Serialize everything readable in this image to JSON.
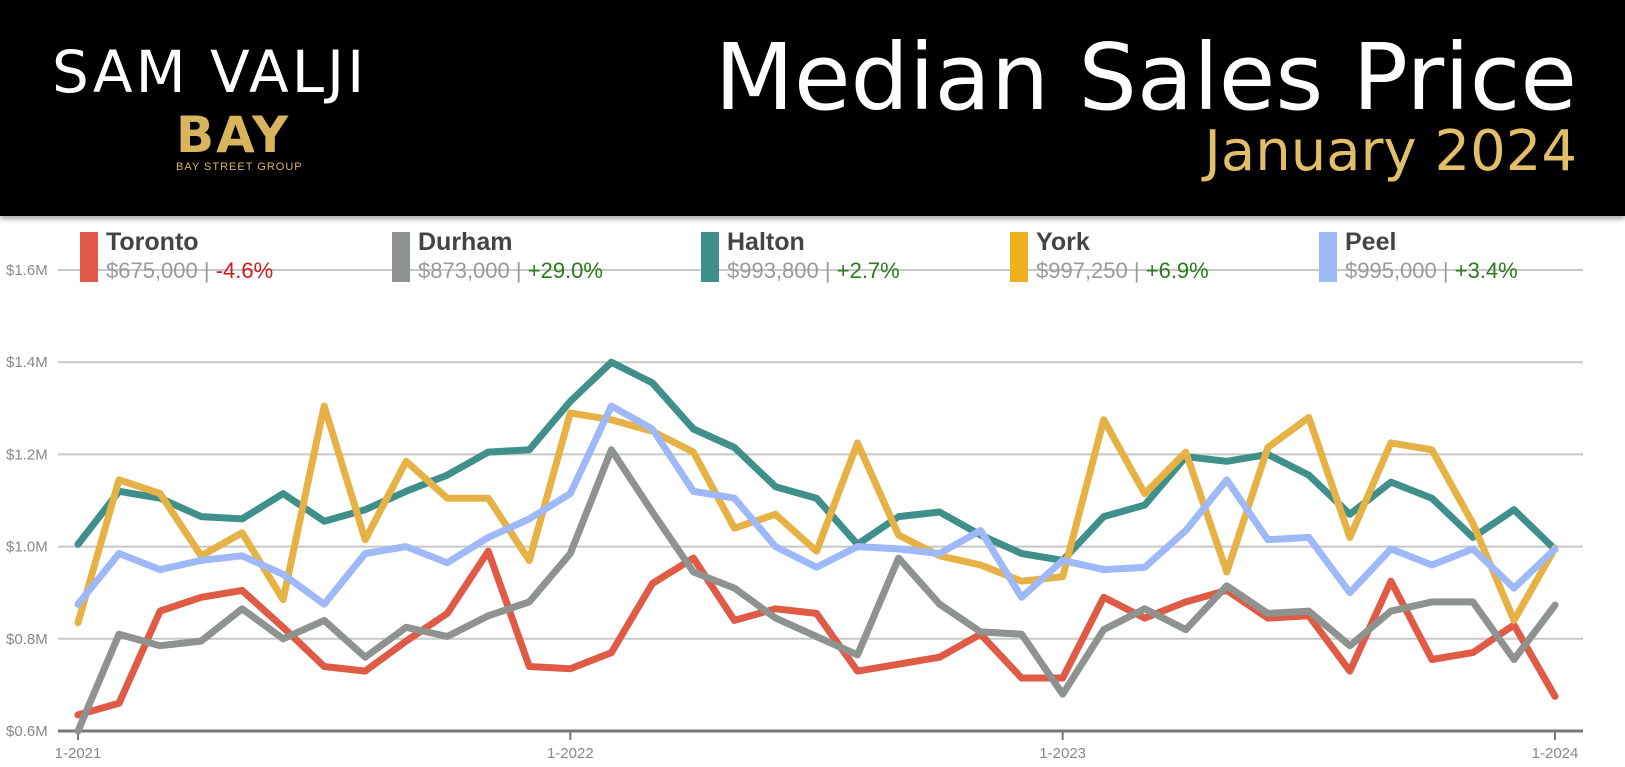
{
  "header": {
    "brand_name": "SAM VALJI",
    "brand_logo": "BAY",
    "brand_sub": "BAY STREET GROUP",
    "title": "Median Sales Price",
    "subtitle": "January 2024"
  },
  "legend": [
    {
      "name": "Toronto",
      "price": "$675,000",
      "sep": "|",
      "change": "-4.6%",
      "color": "#e05a47",
      "positive": false
    },
    {
      "name": "Durham",
      "price": "$873,000",
      "sep": "|",
      "change": "+29.0%",
      "color": "#8e9390",
      "positive": true
    },
    {
      "name": "Halton",
      "price": "$993,800",
      "sep": "|",
      "change": "+2.7%",
      "color": "#3f8f8a",
      "positive": true
    },
    {
      "name": "York",
      "price": "$997,250",
      "sep": "|",
      "change": "+6.9%",
      "color": "#efaf1f",
      "positive": true
    },
    {
      "name": "Peel",
      "price": "$995,000",
      "sep": "|",
      "change": "+3.4%",
      "color": "#9fb8f7",
      "positive": true
    }
  ],
  "chart_data": {
    "type": "line",
    "title": "Median Sales Price",
    "subtitle": "January 2024",
    "x": [
      "1-2021",
      "2-2021",
      "3-2021",
      "4-2021",
      "5-2021",
      "6-2021",
      "7-2021",
      "8-2021",
      "9-2021",
      "10-2021",
      "11-2021",
      "12-2021",
      "1-2022",
      "2-2022",
      "3-2022",
      "4-2022",
      "5-2022",
      "6-2022",
      "7-2022",
      "8-2022",
      "9-2022",
      "10-2022",
      "11-2022",
      "12-2022",
      "1-2023",
      "2-2023",
      "3-2023",
      "4-2023",
      "5-2023",
      "6-2023",
      "7-2023",
      "8-2023",
      "9-2023",
      "10-2023",
      "11-2023",
      "12-2023",
      "1-2024"
    ],
    "x_tick_labels": [
      "1-2021",
      "1-2022",
      "1-2023",
      "1-2024"
    ],
    "y_tick_labels": [
      "$0.6M",
      "$0.8M",
      "$1.0M",
      "$1.2M",
      "$1.4M",
      "$1.6M"
    ],
    "y_ticks": [
      0.6,
      0.8,
      1.0,
      1.2,
      1.4,
      1.6
    ],
    "ylim": [
      0.6,
      1.6
    ],
    "grid": true,
    "legend_position": "top",
    "series": [
      {
        "name": "Toronto",
        "color": "#df5b46",
        "values": [
          0.635,
          0.66,
          0.86,
          0.89,
          0.905,
          0.825,
          0.74,
          0.73,
          0.795,
          0.855,
          0.99,
          0.74,
          0.735,
          0.77,
          0.92,
          0.975,
          0.84,
          0.865,
          0.855,
          0.73,
          0.745,
          0.76,
          0.81,
          0.715,
          0.715,
          0.89,
          0.845,
          0.88,
          0.905,
          0.845,
          0.85,
          0.73,
          0.925,
          0.755,
          0.77,
          0.83,
          0.675
        ]
      },
      {
        "name": "Durham",
        "color": "#8e9390",
        "values": [
          0.6,
          0.81,
          0.785,
          0.795,
          0.865,
          0.8,
          0.84,
          0.76,
          0.825,
          0.805,
          0.85,
          0.88,
          0.985,
          1.21,
          1.075,
          0.945,
          0.91,
          0.845,
          0.805,
          0.765,
          0.975,
          0.875,
          0.815,
          0.81,
          0.68,
          0.82,
          0.865,
          0.82,
          0.915,
          0.855,
          0.86,
          0.785,
          0.86,
          0.88,
          0.88,
          0.755,
          0.873
        ]
      },
      {
        "name": "Halton",
        "color": "#3f8f8a",
        "values": [
          1.005,
          1.12,
          1.105,
          1.065,
          1.06,
          1.115,
          1.055,
          1.08,
          1.12,
          1.155,
          1.205,
          1.21,
          1.315,
          1.4,
          1.355,
          1.255,
          1.215,
          1.13,
          1.105,
          1.005,
          1.065,
          1.075,
          1.025,
          0.985,
          0.97,
          1.065,
          1.09,
          1.195,
          1.185,
          1.2,
          1.155,
          1.07,
          1.14,
          1.105,
          1.02,
          1.08,
          0.994
        ]
      },
      {
        "name": "York",
        "color": "#e6b145",
        "values": [
          0.835,
          1.145,
          1.115,
          0.98,
          1.03,
          0.885,
          1.305,
          1.015,
          1.185,
          1.105,
          1.105,
          0.97,
          1.29,
          1.275,
          1.25,
          1.205,
          1.04,
          1.07,
          0.99,
          1.225,
          1.025,
          0.98,
          0.96,
          0.925,
          0.935,
          1.275,
          1.115,
          1.205,
          0.945,
          1.215,
          1.28,
          1.02,
          1.225,
          1.21,
          1.05,
          0.84,
          0.997
        ]
      },
      {
        "name": "Peel",
        "color": "#9fb8f7",
        "values": [
          0.875,
          0.985,
          0.95,
          0.97,
          0.98,
          0.94,
          0.875,
          0.985,
          1.0,
          0.965,
          1.02,
          1.06,
          1.115,
          1.305,
          1.255,
          1.12,
          1.105,
          1.0,
          0.955,
          1.0,
          0.995,
          0.985,
          1.035,
          0.89,
          0.97,
          0.95,
          0.955,
          1.035,
          1.145,
          1.015,
          1.02,
          0.9,
          0.995,
          0.96,
          0.995,
          0.91,
          0.995
        ]
      }
    ]
  }
}
